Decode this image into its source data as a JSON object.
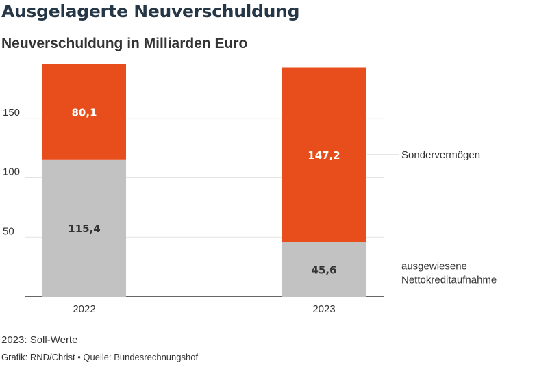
{
  "chart_data": {
    "type": "bar",
    "stacked": true,
    "title": "Ausgelagerte Neuverschuldung",
    "subtitle": "Neuverschuldung in Milliarden Euro",
    "categories": [
      "2022",
      "2023"
    ],
    "series": [
      {
        "name": "ausgewiesene Nettokreditaufnahme",
        "label_lines": [
          "ausgewiesene",
          "Nettokreditaufnahme"
        ],
        "values": [
          115.4,
          45.6
        ],
        "value_labels": [
          "115,4",
          "45,6"
        ],
        "color": "#c2c2c2",
        "label_color": "#333333"
      },
      {
        "name": "Sondervermögen",
        "label_lines": [
          "Sondervermögen"
        ],
        "values": [
          80.1,
          147.2
        ],
        "value_labels": [
          "80,1",
          "147,2"
        ],
        "color": "#e84e1b",
        "label_color": "#ffffff"
      }
    ],
    "y_ticks": [
      50,
      100,
      150
    ],
    "ylim": [
      0,
      195
    ],
    "grid": true,
    "legend": "direct labels right of last bar",
    "note": "2023: Soll-Werte",
    "credit": "Grafik: RND/Christ • Quelle: Bundesrechnungshof"
  }
}
